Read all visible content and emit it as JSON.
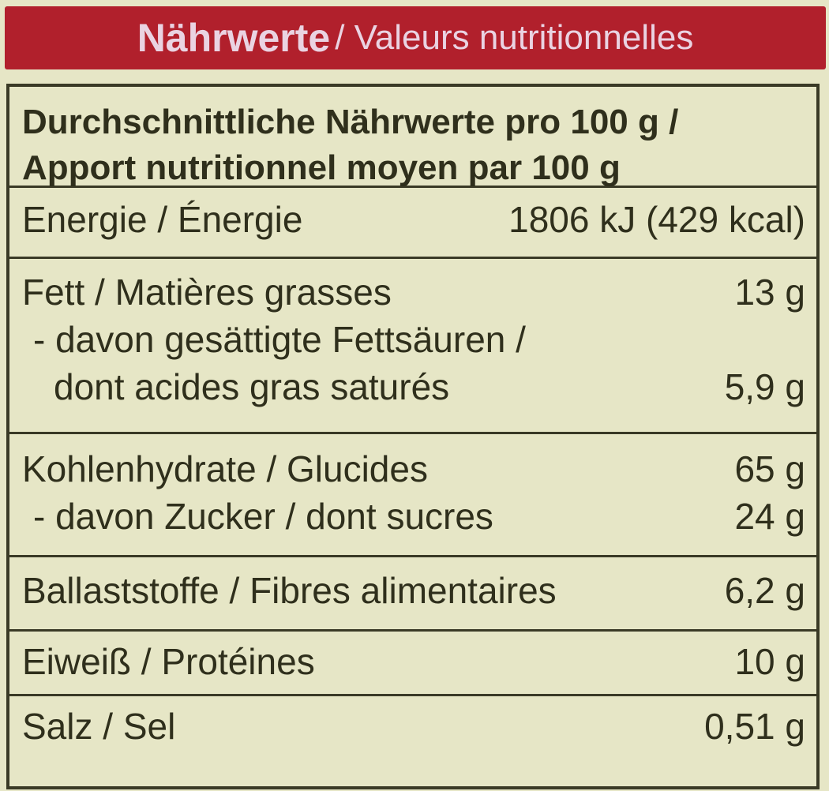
{
  "header": {
    "title_de": "Nährwerte",
    "title_fr": "/ Valeurs nutritionnelles",
    "color": "#b1202c"
  },
  "table": {
    "title_line1": "Durchschnittliche Nährwerte pro 100 g /",
    "title_line2": "Apport nutritionnel moyen par 100 g",
    "groups": [
      {
        "rows": [
          {
            "label": "Energie / Énergie",
            "value": "1806 kJ (429 kcal)"
          }
        ]
      },
      {
        "rows": [
          {
            "label": "Fett / Matières grasses",
            "value": "13 g"
          },
          {
            "label": "- davon gesättigte Fettsäuren /",
            "value": ""
          },
          {
            "label": "  dont acides gras saturés",
            "value": "5,9 g"
          }
        ]
      },
      {
        "rows": [
          {
            "label": "Kohlenhydrate / Glucides",
            "value": "65 g"
          },
          {
            "label": "- davon Zucker / dont sucres",
            "value": "24 g"
          }
        ]
      },
      {
        "rows": [
          {
            "label": "Ballaststoffe / Fibres alimentaires",
            "value": "6,2 g"
          }
        ]
      },
      {
        "rows": [
          {
            "label": "Eiweiß / Protéines",
            "value": "10 g"
          }
        ]
      },
      {
        "rows": [
          {
            "label": "Salz / Sel",
            "value": "0,51 g"
          }
        ]
      }
    ]
  }
}
